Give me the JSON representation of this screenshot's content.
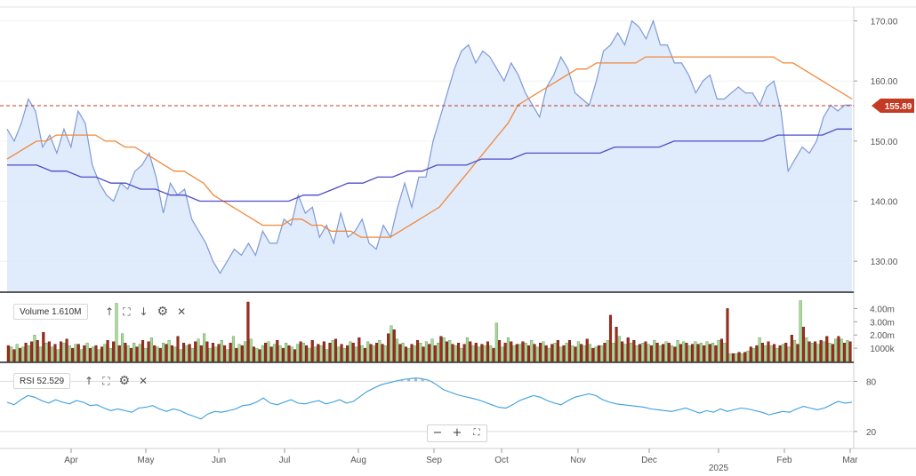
{
  "chart_data": {
    "type": "line",
    "x_labels": [
      "Apr",
      "May",
      "Jun",
      "Jul",
      "Aug",
      "Sep",
      "Oct",
      "Nov",
      "Dec",
      "2025",
      "Feb",
      "Mar"
    ],
    "price_axis": {
      "ticks": [
        130,
        140,
        150,
        160,
        170
      ],
      "tick_labels": [
        "130.00",
        "140.00",
        "150.00",
        "160.00",
        "170.00"
      ],
      "ylim": [
        125,
        172
      ]
    },
    "last_price": {
      "value": 155.89,
      "label": "155.89"
    },
    "series": [
      {
        "values": [
          152,
          150,
          153,
          157,
          155,
          149,
          151,
          148,
          152,
          149,
          155,
          153,
          146,
          143,
          141,
          140,
          143,
          142,
          145,
          146,
          148,
          144,
          138,
          143,
          141,
          142,
          137,
          135,
          133,
          130,
          128,
          130,
          132,
          131,
          133,
          131,
          135,
          133,
          133,
          137,
          136,
          141,
          138,
          139,
          134,
          136,
          133,
          138,
          134,
          135,
          137,
          133,
          132,
          136,
          134,
          139,
          143,
          139,
          144,
          144,
          150,
          154,
          158,
          162,
          165,
          166,
          163,
          165,
          164,
          162,
          160,
          163,
          161,
          158,
          156,
          154,
          159,
          161,
          164,
          162,
          158,
          157,
          156,
          160,
          165,
          166,
          168,
          166,
          170,
          169,
          167,
          170,
          166,
          166,
          163,
          163,
          161,
          158,
          160,
          161,
          157,
          157,
          158,
          159,
          158,
          158,
          156,
          159,
          160,
          155,
          145,
          147,
          149,
          148,
          150,
          154,
          156,
          155,
          156,
          156
        ]
      },
      {
        "values": [
          147,
          148,
          149,
          150,
          150,
          151,
          151,
          151,
          151,
          151,
          150,
          150,
          149,
          149,
          148,
          147,
          146,
          145,
          145,
          144,
          143,
          141,
          140,
          139,
          138,
          137,
          136,
          136,
          136,
          137,
          137,
          136,
          136,
          135,
          135,
          135,
          134,
          134,
          134,
          134,
          135,
          136,
          137,
          138,
          139,
          141,
          143,
          145,
          147,
          149,
          151,
          153,
          156,
          157,
          158,
          159,
          160,
          161,
          162,
          162,
          163,
          163,
          163,
          163,
          163,
          164,
          164,
          164,
          164,
          164,
          164,
          164,
          164,
          164,
          164,
          164,
          164,
          164,
          164,
          163,
          163,
          162,
          161,
          160,
          159,
          158,
          157
        ]
      },
      {
        "values": [
          146,
          146,
          146,
          145,
          145,
          144,
          144,
          143,
          143,
          142,
          142,
          141,
          141,
          140,
          140,
          140,
          140,
          140,
          140,
          140,
          141,
          141,
          142,
          143,
          143,
          144,
          144,
          145,
          145,
          146,
          146,
          146,
          147,
          147,
          147,
          148,
          148,
          148,
          148,
          148,
          148,
          149,
          149,
          149,
          149,
          150,
          150,
          150,
          150,
          150,
          150,
          150,
          151,
          151,
          151,
          151,
          152,
          152
        ]
      }
    ],
    "volume": {
      "label": "Volume 1.610M",
      "tick_labels": [
        "4.00m",
        "3.00m",
        "2.00m",
        "1000k"
      ],
      "ticks": [
        4000000,
        3000000,
        2000000,
        1000000
      ],
      "ylim": [
        0,
        4500000
      ],
      "values": [
        1.2,
        1.1,
        0.9,
        1.3,
        1.0,
        1.1,
        1.4,
        1.2,
        1.5,
        2.0,
        1.6,
        1.1,
        2.2,
        1.4,
        1.5,
        1.1,
        1.3,
        0.9,
        1.5,
        1.4,
        1.7,
        1.2,
        1.0,
        1.3,
        1.3,
        0.9,
        1.2,
        1.4,
        1.0,
        1.1,
        1.2,
        0.9,
        1.1,
        1.3,
        1.6,
        1.0,
        1.5,
        4.4,
        1.2,
        2.1,
        1.4,
        1.2,
        1.0,
        1.4,
        1.1,
        1.3,
        1.6,
        1.0,
        1.5,
        1.8,
        1.2,
        1.1,
        1.0,
        1.4,
        1.3,
        1.6,
        1.2,
        1.1,
        1.9,
        0.9,
        1.4,
        1.2,
        1.3,
        1.0,
        1.5,
        1.7,
        1.2,
        2.1,
        1.5,
        1.0,
        1.4,
        1.1,
        1.3,
        1.6,
        1.2,
        0.9,
        1.4,
        1.9,
        1.0,
        1.3,
        1.2,
        1.5,
        4.5,
        1.7,
        1.1,
        1.0,
        0.9,
        1.2,
        1.4,
        1.5,
        1.1,
        1.3,
        1.6,
        1.2,
        1.0,
        1.4,
        1.2,
        1.1,
        0.9,
        1.3,
        1.5,
        1.4,
        1.2,
        1.0,
        1.6,
        1.1,
        1.3,
        1.2,
        1.5,
        0.9,
        1.4,
        1.6,
        1.7,
        1.1,
        1.3,
        1.0,
        1.2,
        1.5,
        1.4,
        1.1,
        1.8,
        1.2,
        1.0,
        1.5,
        1.3,
        1.2,
        1.4,
        1.6,
        1.3,
        1.2,
        2.1,
        2.7,
        2.4,
        1.7,
        1.3,
        1.4,
        1.1,
        1.0,
        1.3,
        1.2,
        1.6,
        1.4,
        1.1,
        1.5,
        1.3,
        1.7,
        1.2,
        1.4,
        1.9,
        1.8,
        1.5,
        1.6,
        1.3,
        1.2,
        1.4,
        1.0,
        1.3,
        1.8,
        1.5,
        1.2,
        1.4,
        1.1,
        1.3,
        1.2,
        1.5,
        1.2,
        1.0,
        2.9,
        1.6,
        1.1,
        1.4,
        1.8,
        1.5,
        1.2,
        1.3,
        1.3,
        1.5,
        1.4,
        1.2,
        1.6,
        1.3,
        1.1,
        1.4,
        1.5,
        1.2,
        1.0,
        1.3,
        1.4,
        1.6,
        1.1,
        1.2,
        1.4,
        1.6,
        1.2,
        1.1,
        1.5,
        1.3,
        1.2,
        1.7,
        1.3,
        1.0,
        1.1,
        1.2,
        1.2,
        1.4,
        1.6,
        3.5,
        1.4,
        2.6,
        1.9,
        1.5,
        1.3,
        1.8,
        1.4,
        1.6,
        1.2,
        1.3,
        1.4,
        1.5,
        1.3,
        1.2,
        1.6,
        1.4,
        1.2,
        1.3,
        1.5,
        1.4,
        1.2,
        1.1,
        1.6,
        1.3,
        1.5,
        1.4,
        1.2,
        1.3,
        1.5,
        1.3,
        1.4,
        1.2,
        1.5,
        1.3,
        1.4,
        1.2,
        1.6,
        1.7,
        1.4,
        4.0,
        0.6,
        0.6,
        0.6,
        0.7,
        0.6,
        0.7,
        0.8,
        1.1,
        1.0,
        1.2,
        1.8,
        1.4,
        1.2,
        1.5,
        1.2,
        1.3,
        1.0,
        1.2,
        1.3,
        1.4,
        1.1,
        2.0,
        1.6,
        1.3,
        4.6,
        2.6,
        1.8,
        1.5,
        1.4,
        1.5,
        1.3,
        1.6,
        1.5,
        1.9,
        1.4,
        1.3,
        1.7,
        1.9,
        1.7,
        1.4,
        1.6,
        1.5
      ]
    },
    "rsi": {
      "label": "RSI 52.529",
      "tick_labels": [
        "80",
        "20"
      ],
      "ticks": [
        80,
        20
      ],
      "ylim": [
        5,
        90
      ],
      "values": [
        55,
        52,
        58,
        63,
        61,
        57,
        54,
        58,
        55,
        53,
        57,
        55,
        51,
        52,
        48,
        45,
        47,
        45,
        43,
        48,
        49,
        51,
        47,
        44,
        47,
        45,
        41,
        38,
        35,
        41,
        44,
        43,
        45,
        47,
        51,
        52,
        55,
        60,
        54,
        52,
        55,
        58,
        54,
        53,
        55,
        57,
        53,
        55,
        58,
        54,
        56,
        62,
        68,
        72,
        76,
        78,
        80,
        82,
        83,
        84,
        83,
        81,
        76,
        70,
        67,
        64,
        62,
        60,
        58,
        55,
        52,
        49,
        48,
        52,
        57,
        60,
        63,
        61,
        57,
        54,
        52,
        57,
        61,
        63,
        65,
        63,
        58,
        55,
        53,
        52,
        51,
        50,
        49,
        47,
        46,
        45,
        44,
        46,
        48,
        45,
        42,
        45,
        43,
        47,
        44,
        46,
        48,
        47,
        45,
        43,
        40,
        42,
        44,
        43,
        47,
        50,
        48,
        46,
        48,
        52,
        56,
        54,
        55
      ]
    },
    "x_ticks_month_label": [
      "Apr",
      "May",
      "Jun",
      "Jul",
      "Aug",
      "Sep",
      "Oct",
      "Nov",
      "Dec",
      "2025",
      "Feb",
      "Mar"
    ]
  },
  "volume_tools": {
    "up_icon": "arrow-up-icon",
    "expand_icon": "expand-icon",
    "down_icon": "arrow-down-icon",
    "settings_icon": "gear-icon",
    "close_icon": "close-icon"
  },
  "zoom": {
    "minus": "−",
    "plus": "+",
    "fit": "⛶"
  },
  "colors": {
    "price_line": "#7f9ad6",
    "price_fill": "#dbe7fb",
    "ma_orange": "#f0893a",
    "ma_blue": "#4b4dc7",
    "ref_line": "#c0392b",
    "badge": "#c23b22",
    "vol_up": "#a9d99a",
    "vol_down": "#a12a1a",
    "rsi": "#3a9fdc"
  }
}
